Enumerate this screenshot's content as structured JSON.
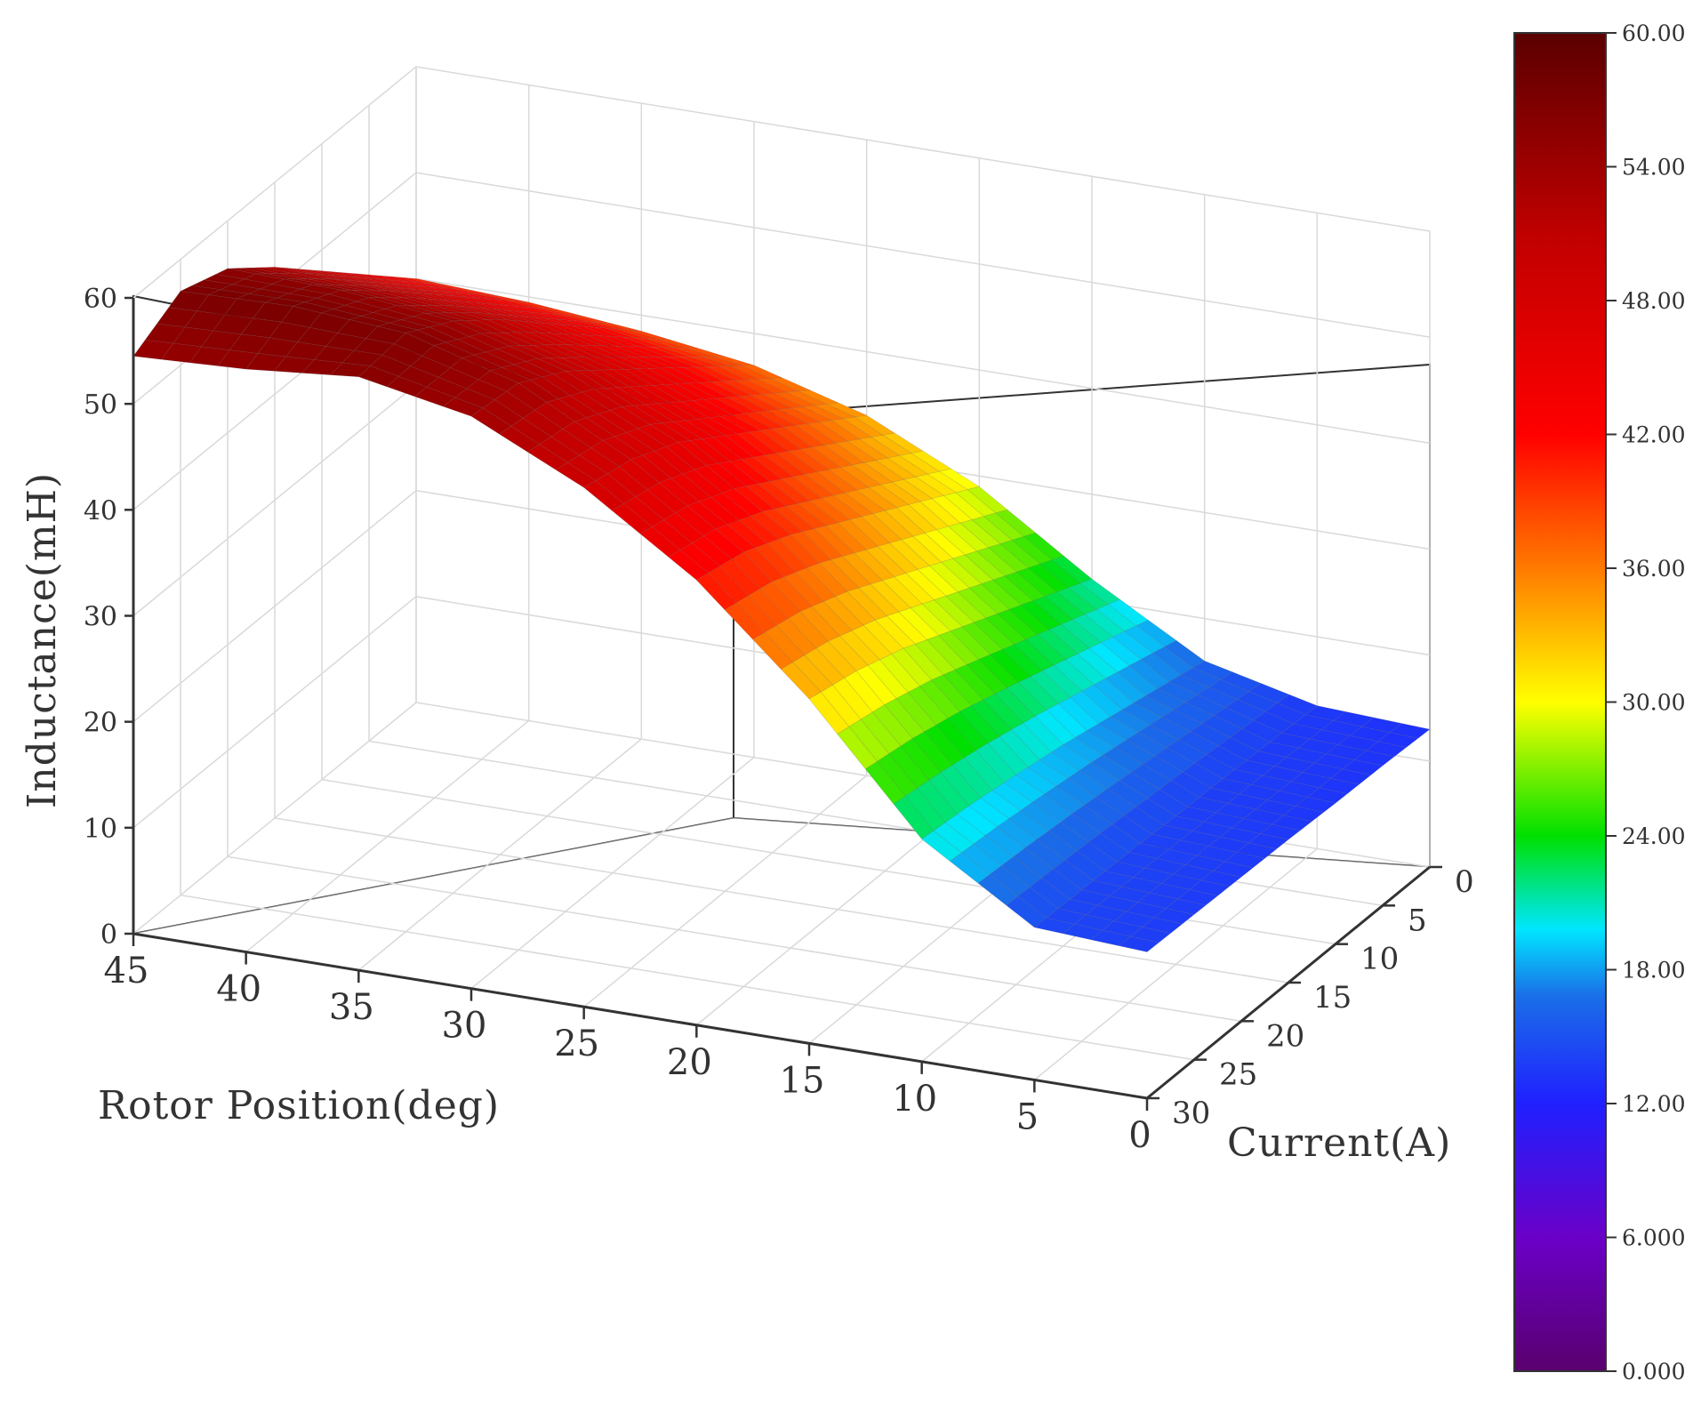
{
  "chart_data": {
    "type": "surface3d",
    "title": "",
    "x_axis": {
      "label": "Rotor Position(deg)",
      "ticks": [
        "45",
        "40",
        "35",
        "30",
        "25",
        "20",
        "15",
        "10",
        "5",
        "0"
      ],
      "range": [
        0,
        45
      ]
    },
    "y_axis": {
      "label": "Current(A)",
      "ticks": [
        "0",
        "5",
        "10",
        "15",
        "20",
        "25",
        "30"
      ],
      "range": [
        0,
        30
      ]
    },
    "z_axis": {
      "label": "Inductance(mH)",
      "ticks": [
        "0",
        "10",
        "20",
        "30",
        "40",
        "50",
        "60"
      ],
      "range": [
        0,
        60
      ]
    },
    "colorbar": {
      "range": [
        0,
        60
      ],
      "ticks": [
        "60.00",
        "54.00",
        "48.00",
        "42.00",
        "36.00",
        "30.00",
        "24.00",
        "18.00",
        "12.00",
        "6.000",
        "0.000"
      ],
      "colormap": [
        "#5a006e",
        "#6a00c8",
        "#2020ff",
        "#1a6ee8",
        "#00e6ff",
        "#00e000",
        "#ffff00",
        "#ff7a00",
        "#ff0000",
        "#c00000",
        "#5a0000"
      ]
    },
    "surface_samples": {
      "rotor_position_deg": [
        0,
        5,
        10,
        15,
        20,
        25,
        30,
        35,
        40,
        45
      ],
      "current_A": [
        0,
        5,
        10,
        15,
        20,
        25,
        30
      ],
      "inductance_mH": [
        [
          13.0,
          13.5,
          16.0,
          22.0,
          29.0,
          34.0,
          37.0,
          38.5,
          39.5,
          40.0
        ],
        [
          13.2,
          13.7,
          17.0,
          24.0,
          31.5,
          37.0,
          40.5,
          42.5,
          43.5,
          44.0
        ],
        [
          13.3,
          13.9,
          18.0,
          26.0,
          34.0,
          40.0,
          44.0,
          46.5,
          47.5,
          48.0
        ],
        [
          13.5,
          14.0,
          19.0,
          28.0,
          36.5,
          43.0,
          47.5,
          50.5,
          51.5,
          52.0
        ],
        [
          13.6,
          14.2,
          19.8,
          30.0,
          39.0,
          46.0,
          51.0,
          54.0,
          55.2,
          55.5
        ],
        [
          13.7,
          14.3,
          20.5,
          31.5,
          41.0,
          48.0,
          53.5,
          56.5,
          57.3,
          57.0
        ],
        [
          13.8,
          14.4,
          21.0,
          32.5,
          42.0,
          49.0,
          54.0,
          56.0,
          55.0,
          54.5
        ]
      ]
    }
  }
}
